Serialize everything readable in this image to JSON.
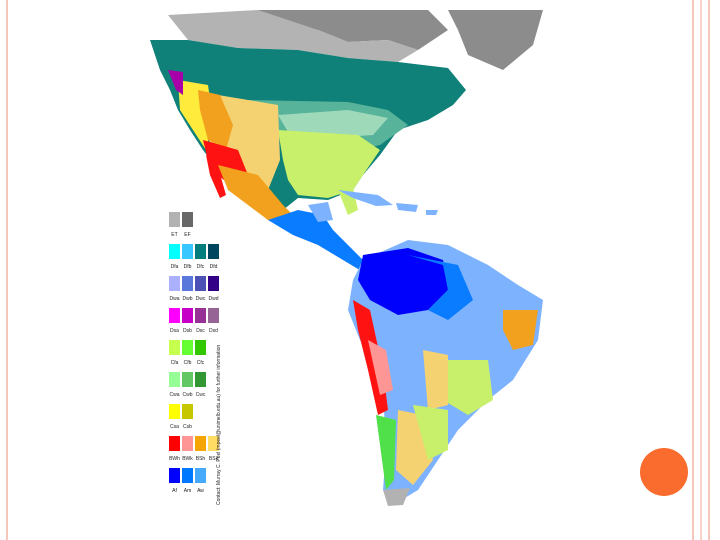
{
  "slide": {
    "background": "#ffffff",
    "frame_colors": [
      "#f4c7b8",
      "#f7d4c7",
      "#f4c7b8"
    ],
    "accent_dot_color": "#fa6b2e"
  },
  "map": {
    "subject": "Köppen climate classification map of the Americas",
    "colors": {
      "ocean": "#ffffff",
      "greenland": "#8c8c8c",
      "tundra": "#b3b3b3",
      "subarctic": "#0f8178",
      "Dfb": "#57b39a",
      "Dfa": "#9ed9b9",
      "Cfa": "#c8f06a",
      "BSk": "#f5d271",
      "BWh": "#ff1212",
      "BSh": "#f2a11e",
      "Aw": "#7db2ff",
      "Am": "#0a7cff",
      "Af": "#0000fd",
      "Csb": "#a800a8",
      "Cwb": "#50e04a",
      "Cfb": "#6ff060",
      "ET": "#b2b2b2"
    }
  },
  "legend": {
    "footnote": "Contact: Murray C. Peel (mpeel@unimelb.edu.au) for further information",
    "columns": [
      {
        "codes": [
          "Af",
          "Am",
          "Aw"
        ],
        "colors": [
          "#0000fe",
          "#0078ff",
          "#46a9fa"
        ]
      },
      {
        "codes": [
          "BWh",
          "BWk",
          "BSh",
          "BSk"
        ],
        "colors": [
          "#fe0000",
          "#fe9695",
          "#f5a500",
          "#ffdc64"
        ]
      },
      {
        "codes": [
          "Csa",
          "Csb"
        ],
        "colors": [
          "#ffff00",
          "#c6c700"
        ]
      },
      {
        "codes": [
          "Cwa",
          "Cwb",
          "Cwc"
        ],
        "colors": [
          "#96ff96",
          "#63c764",
          "#329633"
        ]
      },
      {
        "codes": [
          "Cfa",
          "Cfb",
          "Cfc"
        ],
        "colors": [
          "#c6ff4e",
          "#66ff33",
          "#33c701"
        ]
      },
      {
        "codes": [
          "Dsa",
          "Dsb",
          "Dsc",
          "Dsd"
        ],
        "colors": [
          "#ff00fe",
          "#c600c7",
          "#963295",
          "#966495"
        ]
      },
      {
        "codes": [
          "Dwa",
          "Dwb",
          "Dwc",
          "Dwd"
        ],
        "colors": [
          "#abb1ff",
          "#5a77db",
          "#4c51b5",
          "#320087"
        ]
      },
      {
        "codes": [
          "Dfa",
          "Dfb",
          "Dfc",
          "Dfd"
        ],
        "colors": [
          "#00ffff",
          "#38c7ff",
          "#007e7d",
          "#00455e"
        ]
      },
      {
        "codes": [
          "ET",
          "EF"
        ],
        "colors": [
          "#b2b2b2",
          "#686868"
        ]
      }
    ]
  }
}
